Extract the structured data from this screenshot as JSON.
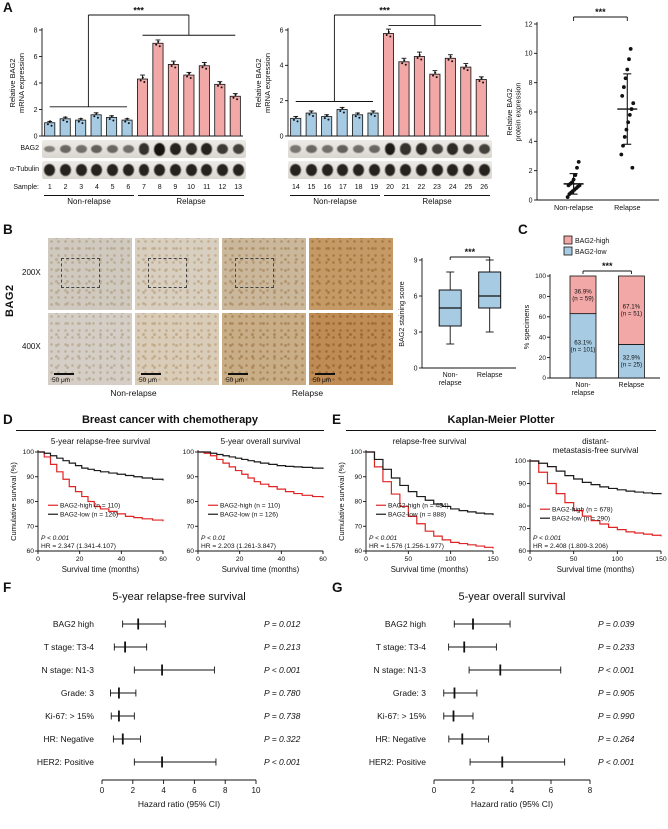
{
  "figure": {
    "panels": {
      "a": {
        "label": "A"
      },
      "b": {
        "label": "B",
        "row_label": "BAG2",
        "mag_labels": [
          "200X",
          "400X"
        ],
        "group_labels": [
          "Non-relapse",
          "Relapse"
        ],
        "scalebar": "50 μm"
      },
      "c": {
        "label": "C"
      },
      "d": {
        "label": "D",
        "title": "Breast cancer with chemotherapy"
      },
      "e": {
        "label": "E",
        "title": "Kaplan-Meier Plotter"
      },
      "f": {
        "label": "F"
      },
      "g": {
        "label": "G"
      }
    },
    "colors": {
      "pink": "#f2a8a6",
      "blue": "#a6cbe3",
      "red": "#e02423",
      "black": "#1a1a1a"
    },
    "blots": [
      {
        "row_labels": [
          "BAG2",
          "α-Tubulin"
        ],
        "sample_label": "Sample:",
        "samples": [
          "1",
          "2",
          "3",
          "4",
          "5",
          "6",
          "7",
          "8",
          "9",
          "10",
          "11",
          "12",
          "13"
        ],
        "group_split": 6,
        "groups": [
          "Non-relapse",
          "Relapse"
        ],
        "bag2_intensity": [
          0.3,
          0.45,
          0.4,
          0.5,
          0.45,
          0.4,
          0.8,
          1.0,
          0.9,
          0.85,
          0.9,
          0.75,
          0.7
        ],
        "tubulin_intensity": 0.9
      },
      {
        "row_labels": [
          "",
          ""
        ],
        "sample_label": "",
        "samples": [
          "14",
          "15",
          "16",
          "17",
          "18",
          "19",
          "20",
          "21",
          "22",
          "23",
          "24",
          "25",
          "26"
        ],
        "group_split": 6,
        "groups": [
          "Non-relapse",
          "Relapse"
        ],
        "bag2_intensity": [
          0.35,
          0.45,
          0.4,
          0.5,
          0.4,
          0.45,
          0.95,
          0.8,
          0.85,
          0.7,
          0.85,
          0.75,
          0.7
        ],
        "tubulin_intensity": 0.9
      }
    ],
    "ihc": {
      "rows": [
        {
          "mag": "200X",
          "cells": [
            {
              "base": "#cfc9bf",
              "stain": "#b3a183",
              "dashed": true,
              "scalebar": false
            },
            {
              "base": "#d8cfc0",
              "stain": "#bca481",
              "dashed": true,
              "scalebar": false
            },
            {
              "base": "#cbb79b",
              "stain": "#a98a5e",
              "dashed": true,
              "scalebar": false
            },
            {
              "base": "#c59a66",
              "stain": "#9e6f38",
              "dashed": false,
              "scalebar": false
            }
          ]
        },
        {
          "mag": "400X",
          "cells": [
            {
              "base": "#d4cec6",
              "stain": "#b6a68c",
              "dashed": false,
              "scalebar": true
            },
            {
              "base": "#d9cdb9",
              "stain": "#bda07a",
              "dashed": false,
              "scalebar": true
            },
            {
              "base": "#c9ad87",
              "stain": "#a37e4e",
              "dashed": false,
              "scalebar": true
            },
            {
              "base": "#c08c55",
              "stain": "#96602c",
              "dashed": false,
              "scalebar": true
            }
          ]
        }
      ]
    }
  },
  "chart_data": [
    {
      "id": "a-bar1",
      "type": "bar",
      "ylabel": "Relative BAG2\nmRNA expression",
      "ylim": [
        0,
        8
      ],
      "yticks": [
        0,
        2,
        4,
        6,
        8
      ],
      "group_split": 6,
      "categories": [
        "1",
        "2",
        "3",
        "4",
        "5",
        "6",
        "7",
        "8",
        "9",
        "10",
        "11",
        "12",
        "13"
      ],
      "values": [
        1.0,
        1.3,
        1.2,
        1.6,
        1.4,
        1.2,
        4.3,
        7.0,
        5.4,
        4.6,
        5.3,
        3.9,
        3.0
      ],
      "errors": [
        0.1,
        0.12,
        0.1,
        0.15,
        0.12,
        0.1,
        0.3,
        0.25,
        0.25,
        0.2,
        0.25,
        0.2,
        0.2
      ],
      "colors": [
        "#a6cbe3",
        "#f2a8a6"
      ],
      "sig": "***"
    },
    {
      "id": "a-bar2",
      "type": "bar",
      "ylabel": "Relative BAG2\nmRNA expression",
      "ylim": [
        0,
        6
      ],
      "yticks": [
        0,
        2,
        4,
        6
      ],
      "group_split": 6,
      "categories": [
        "14",
        "15",
        "16",
        "17",
        "18",
        "19",
        "20",
        "21",
        "22",
        "23",
        "24",
        "25",
        "26"
      ],
      "values": [
        1.0,
        1.3,
        1.1,
        1.5,
        1.2,
        1.3,
        5.8,
        4.2,
        4.5,
        3.5,
        4.4,
        3.9,
        3.2
      ],
      "errors": [
        0.1,
        0.12,
        0.1,
        0.12,
        0.1,
        0.12,
        0.25,
        0.2,
        0.25,
        0.2,
        0.2,
        0.2,
        0.15
      ],
      "colors": [
        "#a6cbe3",
        "#f2a8a6"
      ],
      "sig": "***"
    },
    {
      "id": "a-scatter",
      "type": "scatter",
      "ylabel": "Relative BAG2\nprotein expression",
      "ylim": [
        0,
        12
      ],
      "yticks": [
        0,
        2,
        4,
        6,
        8,
        10,
        12
      ],
      "groups": [
        {
          "label": "Non-relapse",
          "points": [
            0.2,
            0.4,
            0.5,
            0.6,
            0.7,
            0.8,
            0.9,
            1.0,
            1.0,
            1.1,
            1.2,
            1.4,
            1.7,
            2.2,
            2.6
          ],
          "mean": 1.1,
          "sd": 0.7
        },
        {
          "label": "Relapse",
          "points": [
            2.2,
            3.1,
            3.7,
            4.3,
            4.8,
            5.3,
            5.8,
            6.2,
            6.6,
            7.1,
            7.7,
            8.3,
            8.9,
            9.6,
            10.3
          ],
          "mean": 6.2,
          "sd": 2.4
        }
      ],
      "sig": "***"
    },
    {
      "id": "b-box",
      "type": "box",
      "ylabel": "BAG2 staining score",
      "ylim": [
        0,
        9
      ],
      "yticks": [
        0,
        3,
        6,
        9
      ],
      "box_color": "#a6cbe3",
      "groups": [
        {
          "label": "Non-\nrelapse",
          "lo": 2,
          "q1": 3.5,
          "med": 5,
          "q3": 6.5,
          "hi": 8
        },
        {
          "label": "Relapse",
          "lo": 3,
          "q1": 5,
          "med": 6,
          "q3": 8,
          "hi": 9
        }
      ],
      "sig": "***"
    },
    {
      "id": "c-stack",
      "type": "stacked-bar",
      "ylabel": "% specimens",
      "ylim": [
        0,
        100
      ],
      "yticks": [
        0,
        20,
        40,
        60,
        80,
        100
      ],
      "categories": [
        "Non-\nrelapse",
        "Relapse"
      ],
      "series": [
        {
          "name": "BAG2-high",
          "color": "#f2a8a6",
          "values": [
            36.9,
            67.1
          ],
          "labels": [
            "36.9%\n(n = 59)",
            "67.1%\n(n = 51)"
          ]
        },
        {
          "name": "BAG2-low",
          "color": "#a6cbe3",
          "values": [
            63.1,
            32.9
          ],
          "labels": [
            "63.1%\n(n = 101)",
            "32.9%\n(n = 25)"
          ]
        }
      ],
      "sig": "***"
    },
    {
      "id": "d-km1",
      "type": "km-line",
      "title": "5-year relapse-free survival",
      "xlabel": "Survival time (months)",
      "ylabel": "Cumulative survival (%)",
      "xlim": [
        0,
        60
      ],
      "xticks": [
        0,
        20,
        40,
        60
      ],
      "ylim": [
        60,
        100
      ],
      "yticks": [
        60,
        70,
        80,
        90,
        100
      ],
      "series": [
        {
          "name": "BAG2-high (n = 110)",
          "color": "#e02423",
          "x": [
            0,
            3,
            6,
            9,
            12,
            15,
            18,
            21,
            24,
            27,
            30,
            34,
            38,
            42,
            46,
            50,
            55,
            60
          ],
          "y": [
            100,
            98,
            95,
            92,
            89,
            86,
            84,
            82,
            80,
            78,
            77,
            76,
            75,
            74,
            73.5,
            73,
            72.5,
            72
          ]
        },
        {
          "name": "BAG2-low (n = 126)",
          "color": "#1a1a1a",
          "x": [
            0,
            3,
            6,
            9,
            12,
            15,
            18,
            21,
            24,
            27,
            30,
            34,
            38,
            42,
            46,
            50,
            55,
            60
          ],
          "y": [
            100,
            99.5,
            98.5,
            97.5,
            96.5,
            95.5,
            94.5,
            93.5,
            93,
            92.5,
            92,
            91.5,
            91,
            90.5,
            90,
            89.5,
            89,
            88.5
          ]
        }
      ],
      "stats": [
        "P < 0.001",
        "HR = 2.347 (1.341-4.107)"
      ]
    },
    {
      "id": "d-km2",
      "type": "km-line",
      "title": "5-year overall survival",
      "xlabel": "Survival time (months)",
      "ylabel": "",
      "xlim": [
        0,
        60
      ],
      "xticks": [
        0,
        20,
        40,
        60
      ],
      "ylim": [
        60,
        100
      ],
      "yticks": [
        60,
        70,
        80,
        90,
        100
      ],
      "series": [
        {
          "name": "BAG2-high (n = 110)",
          "color": "#e02423",
          "x": [
            0,
            3,
            6,
            9,
            12,
            15,
            18,
            21,
            24,
            27,
            30,
            34,
            38,
            42,
            46,
            50,
            55,
            60
          ],
          "y": [
            100,
            99.5,
            98.5,
            97,
            95.5,
            94,
            92.5,
            91,
            89.5,
            88,
            87,
            86,
            85,
            84,
            83.2,
            82.5,
            82,
            81.5
          ]
        },
        {
          "name": "BAG2-low (n = 126)",
          "color": "#1a1a1a",
          "x": [
            0,
            3,
            6,
            9,
            12,
            15,
            18,
            21,
            24,
            27,
            30,
            34,
            38,
            42,
            46,
            50,
            55,
            60
          ],
          "y": [
            100,
            100,
            99.5,
            99,
            98.5,
            98,
            97.5,
            97,
            96.5,
            96,
            95.5,
            95,
            94.5,
            94.2,
            94,
            93.8,
            93.5,
            93.2
          ]
        }
      ],
      "stats": [
        "P < 0.01",
        "HR = 2.203 (1.261-3.847)"
      ]
    },
    {
      "id": "e-km1",
      "type": "km-line",
      "title": "relapse-free survival",
      "xlabel": "Survival time (months)",
      "ylabel": "Cumulative survival (%)",
      "xlim": [
        0,
        150
      ],
      "xticks": [
        0,
        50,
        100,
        150
      ],
      "ylim": [
        60,
        100
      ],
      "yticks": [
        60,
        70,
        80,
        90,
        100
      ],
      "series": [
        {
          "name": "BAG2-high (n = 484)",
          "color": "#e02423",
          "x": [
            0,
            10,
            20,
            30,
            40,
            50,
            60,
            70,
            80,
            90,
            100,
            110,
            120,
            130,
            140,
            150
          ],
          "y": [
            100,
            94,
            88,
            83,
            78,
            74,
            71,
            68,
            66,
            64.5,
            63.5,
            63,
            62.5,
            62,
            61.5,
            61
          ]
        },
        {
          "name": "BAG2-low (n = 888)",
          "color": "#1a1a1a",
          "x": [
            0,
            10,
            20,
            30,
            40,
            50,
            60,
            70,
            80,
            90,
            100,
            110,
            120,
            130,
            140,
            150
          ],
          "y": [
            100,
            97,
            93,
            89.5,
            86.5,
            84,
            82,
            80.5,
            79,
            78,
            77,
            76.3,
            75.8,
            75.3,
            75,
            74.5
          ]
        }
      ],
      "stats": [
        "P < 0.001",
        "HR = 1.576 (1.256-1.977)"
      ]
    },
    {
      "id": "e-km2",
      "type": "km-line",
      "title": "distant-\nmetastasis-free survival",
      "xlabel": "Survival time (months)",
      "ylabel": "",
      "xlim": [
        0,
        150
      ],
      "xticks": [
        0,
        50,
        100,
        150
      ],
      "ylim": [
        60,
        100
      ],
      "yticks": [
        60,
        70,
        80,
        90,
        100
      ],
      "series": [
        {
          "name": "BAG2-high (n = 678)",
          "color": "#e02423",
          "x": [
            0,
            10,
            20,
            30,
            40,
            50,
            60,
            70,
            80,
            90,
            100,
            110,
            120,
            130,
            140,
            150
          ],
          "y": [
            100,
            95,
            90,
            85.5,
            81.5,
            78,
            75.5,
            73.5,
            72,
            70.5,
            69.5,
            68.5,
            68,
            67.5,
            67,
            66.5
          ]
        },
        {
          "name": "BAG2-low (n = 290)",
          "color": "#1a1a1a",
          "x": [
            0,
            10,
            20,
            30,
            40,
            50,
            60,
            70,
            80,
            90,
            100,
            110,
            120,
            130,
            140,
            150
          ],
          "y": [
            100,
            99,
            97.5,
            95.5,
            93.5,
            92,
            90.5,
            89.5,
            88.5,
            87.8,
            87.2,
            86.6,
            86.2,
            85.8,
            85.5,
            85.2
          ]
        }
      ],
      "stats": [
        "P < 0.001",
        "HR = 2.408 (1.809-3.206)"
      ]
    },
    {
      "id": "f-forest",
      "type": "forest",
      "title": "5-year relapse-free survival",
      "xlabel": "Hazard ratio (95% CI)",
      "xlim": [
        0,
        10
      ],
      "xticks": [
        0,
        2,
        4,
        6,
        8,
        10
      ],
      "rows": [
        {
          "label": "BAG2 high",
          "est": 2.35,
          "lo": 1.34,
          "hi": 4.11,
          "p": "P = 0.012",
          "sig": true
        },
        {
          "label": "T stage: T3-4",
          "est": 1.5,
          "lo": 0.8,
          "hi": 2.9,
          "p": "P = 0.213",
          "sig": false
        },
        {
          "label": "N stage: N1-3",
          "est": 3.9,
          "lo": 2.1,
          "hi": 7.3,
          "p": "P < 0.001",
          "sig": true
        },
        {
          "label": "Grade: 3",
          "est": 1.1,
          "lo": 0.55,
          "hi": 2.2,
          "p": "P = 0.780",
          "sig": false
        },
        {
          "label": "Ki-67: > 15%",
          "est": 1.1,
          "lo": 0.6,
          "hi": 2.1,
          "p": "P = 0.738",
          "sig": false
        },
        {
          "label": "HR: Negative",
          "est": 1.35,
          "lo": 0.74,
          "hi": 2.5,
          "p": "P = 0.322",
          "sig": false
        },
        {
          "label": "HER2: Positive",
          "est": 3.9,
          "lo": 2.1,
          "hi": 7.4,
          "p": "P < 0.001",
          "sig": true
        }
      ]
    },
    {
      "id": "g-forest",
      "type": "forest",
      "title": "5-year overall survival",
      "xlabel": "Hazard ratio (95% CI)",
      "xlim": [
        0,
        8
      ],
      "xticks": [
        0,
        2,
        4,
        6,
        8
      ],
      "rows": [
        {
          "label": "BAG2 high",
          "est": 2.0,
          "lo": 1.04,
          "hi": 3.9,
          "p": "P = 0.039",
          "sig": true
        },
        {
          "label": "T stage: T3-4",
          "est": 1.55,
          "lo": 0.75,
          "hi": 3.2,
          "p": "P = 0.233",
          "sig": false
        },
        {
          "label": "N stage: N1-3",
          "est": 3.4,
          "lo": 1.8,
          "hi": 6.5,
          "p": "P < 0.001",
          "sig": true
        },
        {
          "label": "Grade: 3",
          "est": 1.05,
          "lo": 0.5,
          "hi": 2.2,
          "p": "P = 0.905",
          "sig": false
        },
        {
          "label": "Ki-67: > 15%",
          "est": 1.0,
          "lo": 0.5,
          "hi": 2.0,
          "p": "P = 0.990",
          "sig": false
        },
        {
          "label": "HR: Negative",
          "est": 1.45,
          "lo": 0.76,
          "hi": 2.8,
          "p": "P = 0.264",
          "sig": false
        },
        {
          "label": "HER2: Positive",
          "est": 3.5,
          "lo": 1.85,
          "hi": 6.7,
          "p": "P < 0.001",
          "sig": true
        }
      ]
    }
  ]
}
